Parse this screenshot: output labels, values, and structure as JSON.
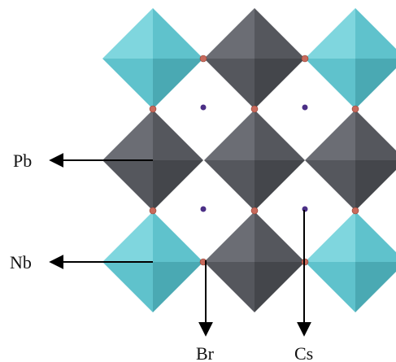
{
  "labels": {
    "pb": "Pb",
    "nb": "Nb",
    "br": "Br",
    "cs": "Cs"
  },
  "colors": {
    "nb_octahedron_light": "#7fd6de",
    "nb_octahedron_mid": "#5fc2cc",
    "nb_octahedron_dark": "#4aa9b3",
    "pb_octahedron_light": "#6b6d74",
    "pb_octahedron_mid": "#55575d",
    "pb_octahedron_dark": "#44464b",
    "br_atom": "#c86a5c",
    "cs_atom": "#4b2f86",
    "arrow": "#000000"
  }
}
